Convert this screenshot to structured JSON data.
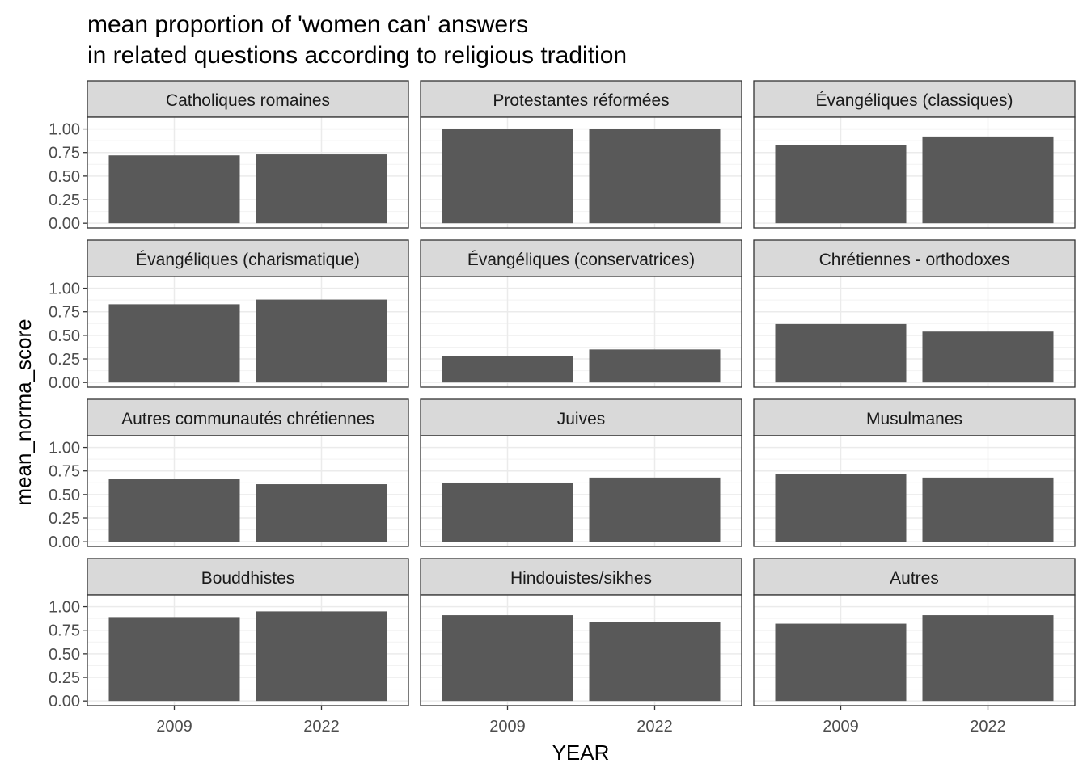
{
  "chart_data": {
    "type": "bar",
    "title_line1": "mean proportion of 'women can' answers",
    "title_line2": "in related questions according to religious tradition",
    "xlabel": "YEAR",
    "ylabel": "mean_norma_score",
    "categories": [
      "2009",
      "2022"
    ],
    "ylim": [
      0,
      1.0
    ],
    "yticks": [
      "0.00",
      "0.25",
      "0.50",
      "0.75",
      "1.00"
    ],
    "ytick_values": [
      0,
      0.25,
      0.5,
      0.75,
      1.0
    ],
    "grid": true,
    "bar_color": "#595959",
    "strip_color": "#d9d9d9",
    "panels": [
      {
        "name": "Catholiques romaines",
        "values": [
          0.72,
          0.73
        ]
      },
      {
        "name": "Protestantes réformées",
        "values": [
          1.0,
          1.0
        ]
      },
      {
        "name": "Évangéliques (classiques)",
        "values": [
          0.83,
          0.92
        ]
      },
      {
        "name": "Évangéliques (charismatique)",
        "values": [
          0.83,
          0.88
        ]
      },
      {
        "name": "Évangéliques (conservatrices)",
        "values": [
          0.28,
          0.35
        ]
      },
      {
        "name": "Chrétiennes - orthodoxes",
        "values": [
          0.62,
          0.54
        ]
      },
      {
        "name": "Autres communautés chrétiennes",
        "values": [
          0.67,
          0.61
        ]
      },
      {
        "name": "Juives",
        "values": [
          0.62,
          0.68
        ]
      },
      {
        "name": "Musulmanes",
        "values": [
          0.72,
          0.68
        ]
      },
      {
        "name": "Bouddhistes",
        "values": [
          0.89,
          0.95
        ]
      },
      {
        "name": "Hindouistes/sikhes",
        "values": [
          0.91,
          0.84
        ]
      },
      {
        "name": "Autres",
        "values": [
          0.82,
          0.91
        ]
      }
    ]
  }
}
